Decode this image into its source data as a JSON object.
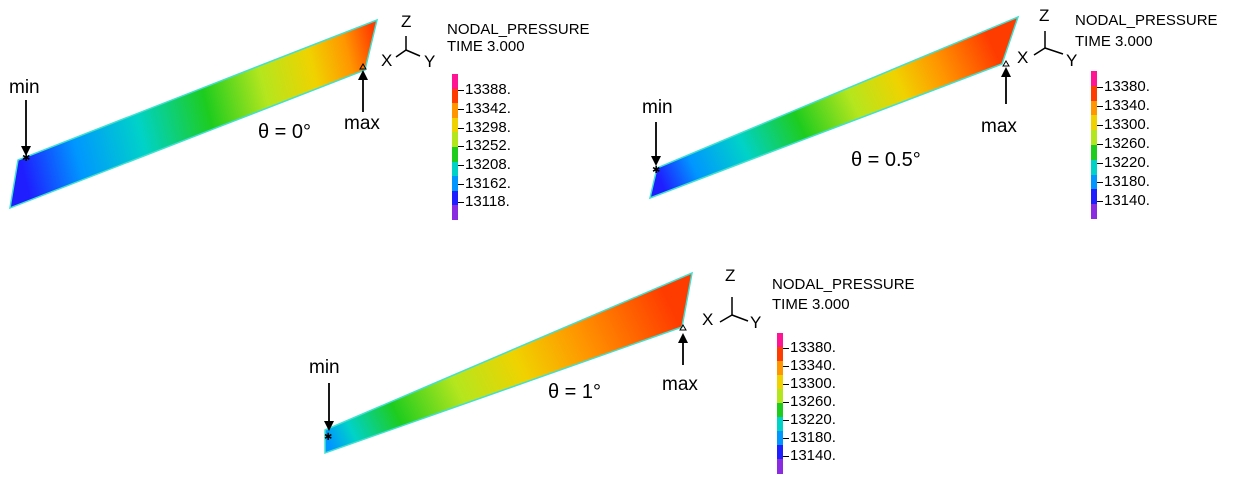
{
  "colors": {
    "scale": [
      "#8a2be2",
      "#1e1eff",
      "#0096ff",
      "#00d2c8",
      "#1ecc1e",
      "#b4e61e",
      "#f0d200",
      "#ff9600",
      "#ff3c00",
      "#ff1493"
    ],
    "edge": "#40e0d0",
    "annotation": "#000000"
  },
  "panels": [
    {
      "result_label": "NODAL_PRESSURE",
      "time_label": "TIME 3.000",
      "angle_label": "θ = 0°",
      "min_label": "min",
      "max_label": "max",
      "axes": {
        "z": "Z",
        "x": "X",
        "y": "Y"
      },
      "legend_ticks": [
        "13388.",
        "13342.",
        "13298.",
        "13252.",
        "13208.",
        "13162.",
        "13118."
      ]
    },
    {
      "result_label": "NODAL_PRESSURE",
      "time_label": "TIME 3.000",
      "angle_label": "θ = 0.5°",
      "min_label": "min",
      "max_label": "max",
      "axes": {
        "z": "Z",
        "x": "X",
        "y": "Y"
      },
      "legend_ticks": [
        "13380.",
        "13340.",
        "13300.",
        "13260.",
        "13220.",
        "13180.",
        "13140."
      ]
    },
    {
      "result_label": "NODAL_PRESSURE",
      "time_label": "TIME 3.000",
      "angle_label": "θ = 1°",
      "min_label": "min",
      "max_label": "max",
      "axes": {
        "z": "Z",
        "x": "X",
        "y": "Y"
      },
      "legend_ticks": [
        "13380.",
        "13340.",
        "13300.",
        "13260.",
        "13220.",
        "13180.",
        "13140."
      ]
    }
  ]
}
